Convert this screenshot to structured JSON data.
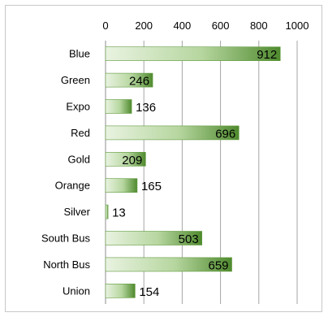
{
  "chart_data": {
    "type": "bar",
    "orientation": "horizontal",
    "title": "",
    "xlabel": "",
    "ylabel": "",
    "categories": [
      "Blue",
      "Green",
      "Expo",
      "Red",
      "Gold",
      "Orange",
      "Silver",
      "South Bus",
      "North Bus",
      "Union"
    ],
    "values": [
      912,
      246,
      136,
      696,
      209,
      165,
      13,
      503,
      659,
      154
    ],
    "xlim": [
      0,
      1000
    ],
    "x_ticks": [
      0,
      200,
      400,
      600,
      800,
      1000
    ],
    "x_tick_labels": [
      "0",
      "200",
      "400",
      "600",
      "800",
      "1000"
    ],
    "axis_position": "top",
    "grid": true,
    "legend": false,
    "data_labels": true,
    "bar_colors": {
      "light": "#e9f3e1",
      "mid": "#b6d69f",
      "dark": "#4f8a2e",
      "edge": "#5f9a3c"
    }
  }
}
